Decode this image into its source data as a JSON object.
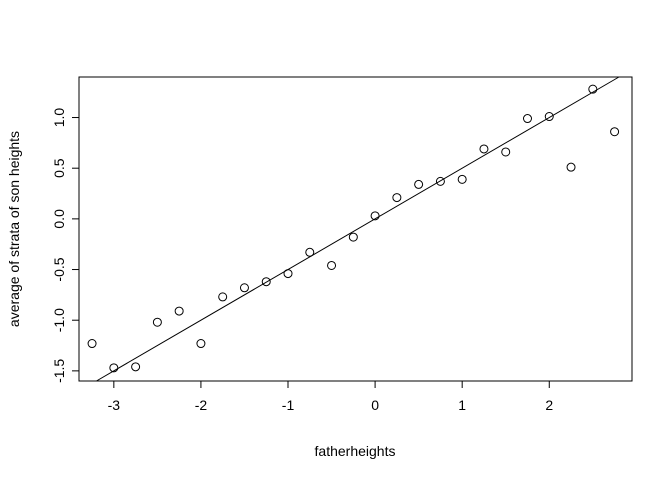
{
  "chart_data": {
    "type": "scatter",
    "title": "",
    "xlabel": "fatherheights",
    "ylabel": "average of strata of son heights",
    "xlim": [
      -3.4,
      2.95
    ],
    "ylim": [
      -1.6,
      1.4
    ],
    "x_ticks": [
      -3,
      -2,
      -1,
      0,
      1,
      2
    ],
    "x_tick_labels": [
      "-3",
      "-2",
      "-1",
      "0",
      "1",
      "2"
    ],
    "y_ticks": [
      -1.5,
      -1.0,
      -0.5,
      0.0,
      0.5,
      1.0
    ],
    "y_tick_labels": [
      "-1.5",
      "-1.0",
      "-0.5",
      "0.0",
      "0.5",
      "1.0"
    ],
    "grid": false,
    "legend": "none",
    "point_style": "open-circle",
    "series": [
      {
        "x": [
          -3.25,
          -3.0,
          -2.75,
          -2.5,
          -2.25,
          -2.0,
          -1.75,
          -1.5,
          -1.25,
          -1.0,
          -0.75,
          -0.5,
          -0.25,
          0.0,
          0.25,
          0.5,
          0.75,
          1.0,
          1.25,
          1.5,
          1.75,
          2.0,
          2.25,
          2.5,
          2.75
        ],
        "y": [
          -1.23,
          -1.47,
          -1.46,
          -1.02,
          -0.91,
          -1.23,
          -0.77,
          -0.68,
          -0.62,
          -0.54,
          -0.33,
          -0.46,
          -0.18,
          0.03,
          0.21,
          0.34,
          0.37,
          0.39,
          0.69,
          0.66,
          0.99,
          1.01,
          0.51,
          1.28,
          0.86
        ]
      }
    ],
    "fit_line": {
      "slope": 0.5,
      "intercept": 0.0
    }
  }
}
